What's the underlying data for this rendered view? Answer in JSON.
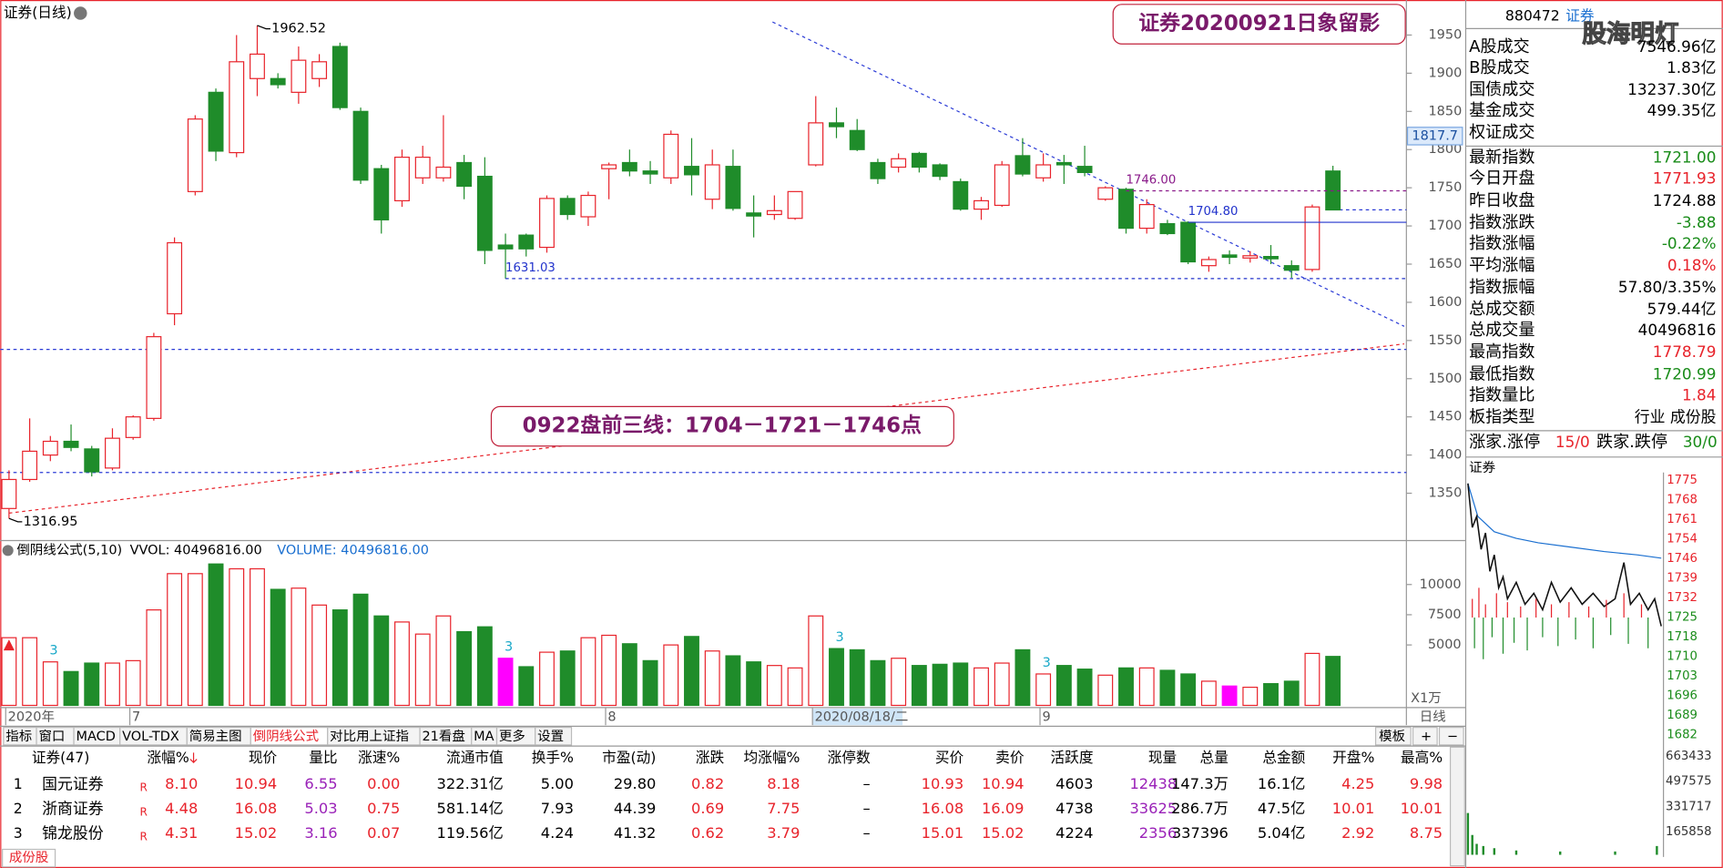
{
  "chart_data": [
    {
      "type": "candlestick",
      "title": "证券(日线)",
      "open": [
        1330,
        1368,
        1400,
        1418,
        1408,
        1383,
        1423,
        1448,
        1585,
        1745,
        1875,
        1796,
        1893,
        1893,
        1875,
        1893,
        1935,
        1850,
        1775,
        1733,
        1763,
        1763,
        1783,
        1765,
        1675,
        1688,
        1672,
        1736,
        1712,
        1775,
        1783,
        1772,
        1763,
        1778,
        1735,
        1778,
        1717,
        1715,
        1710,
        1780,
        1835,
        1825,
        1783,
        1777,
        1795,
        1780,
        1758,
        1722,
        1727,
        1792,
        1763,
        1783,
        1778,
        1735,
        1748,
        1697,
        1703,
        1704.8,
        1648,
        1662,
        1658,
        1660,
        1648,
        1643,
        1771.93
      ],
      "high": [
        1380,
        1448,
        1425,
        1440,
        1412,
        1435,
        1452,
        1560,
        1685,
        1845,
        1880,
        1950,
        1962.52,
        1900,
        1935,
        1925,
        1940,
        1855,
        1780,
        1800,
        1805,
        1845,
        1793,
        1790,
        1690,
        1690,
        1740,
        1740,
        1745,
        1783,
        1800,
        1785,
        1825,
        1815,
        1800,
        1800,
        1740,
        1740,
        1745,
        1870,
        1855,
        1840,
        1788,
        1795,
        1797,
        1782,
        1762,
        1738,
        1785,
        1815,
        1795,
        1793,
        1805,
        1752,
        1750,
        1735,
        1708,
        1706,
        1660,
        1668,
        1667,
        1675,
        1655,
        1728,
        1778.79
      ],
      "low": [
        1316.95,
        1365,
        1392,
        1405,
        1372,
        1380,
        1420,
        1445,
        1570,
        1740,
        1785,
        1790,
        1870,
        1880,
        1860,
        1882,
        1852,
        1755,
        1690,
        1725,
        1755,
        1758,
        1735,
        1650,
        1631.03,
        1660,
        1665,
        1708,
        1700,
        1735,
        1765,
        1755,
        1755,
        1740,
        1722,
        1720,
        1685,
        1708,
        1708,
        1778,
        1815,
        1798,
        1755,
        1770,
        1770,
        1760,
        1720,
        1708,
        1725,
        1765,
        1758,
        1755,
        1765,
        1733,
        1690,
        1690,
        1688,
        1650,
        1640,
        1650,
        1652,
        1650,
        1632,
        1640,
        1720.99
      ],
      "close": [
        1368,
        1405,
        1418,
        1410,
        1378,
        1422,
        1450,
        1555,
        1678,
        1840,
        1798,
        1915,
        1925,
        1885,
        1917,
        1915,
        1855,
        1760,
        1708,
        1790,
        1790,
        1777,
        1752,
        1668,
        1670,
        1670,
        1736,
        1715,
        1740,
        1780,
        1772,
        1768,
        1820,
        1767,
        1780,
        1723,
        1713,
        1720,
        1745,
        1835,
        1830,
        1800,
        1762,
        1788,
        1777,
        1765,
        1722,
        1733,
        1780,
        1768,
        1780,
        1780,
        1770,
        1750,
        1697,
        1728,
        1690,
        1653,
        1656,
        1659,
        1661,
        1657,
        1642,
        1724.88,
        1721
      ],
      "up_color": "#e8232b",
      "down_color": "#1f8c2a",
      "ylim": [
        1288,
        1993
      ],
      "yticks": [
        1350,
        1400,
        1450,
        1500,
        1550,
        1600,
        1650,
        1700,
        1750,
        1800,
        1850,
        1900,
        1950
      ],
      "price_labels": [
        {
          "value": 1962.52,
          "index": 12
        },
        {
          "value": 1316.95,
          "index": 0
        },
        {
          "value": 1631.03,
          "index": 24,
          "line": "dash",
          "color": "#2233cc"
        },
        {
          "value": 1704.8,
          "label": "1704.80",
          "index": 57,
          "line": "solid",
          "color": "#2233cc"
        },
        {
          "value": 1746,
          "label": "1746.00",
          "index": 54,
          "line": "dash",
          "color": "#8a1a8a"
        }
      ],
      "cursor": 1817.7,
      "x_labels": [
        {
          "label": "2020年",
          "index": 0
        },
        {
          "label": "7",
          "index": 6
        },
        {
          "label": "8",
          "index": 29
        },
        {
          "label": "2020/08/18/二",
          "index": 39
        },
        {
          "label": "9",
          "index": 50
        }
      ],
      "period": "日线",
      "notes": [
        "证券20200921日象留影",
        "0922盘前三线：1704－1721－1746点"
      ]
    },
    {
      "type": "bar",
      "title": "倒阴线公式(5,10)",
      "series_labels": [
        "VVOL: 40496816.00",
        "VOLUME: 40496816.00"
      ],
      "values": [
        5600,
        5600,
        3600,
        2800,
        3500,
        3500,
        3700,
        7900,
        10900,
        10900,
        11700,
        11300,
        11300,
        9600,
        9700,
        8300,
        7900,
        9200,
        7400,
        6900,
        5900,
        7400,
        6100,
        6500,
        3900,
        3200,
        4400,
        4500,
        5600,
        5800,
        5100,
        3700,
        5000,
        5700,
        4500,
        4100,
        3600,
        3300,
        3100,
        7400,
        4700,
        4600,
        3700,
        3900,
        3300,
        3400,
        3500,
        3100,
        3500,
        4600,
        2600,
        3300,
        3000,
        2500,
        3100,
        3100,
        2900,
        2600,
        2000,
        1600,
        1500,
        1800,
        2000,
        4300,
        4050
      ],
      "highlight": [
        24,
        59
      ],
      "highlight_color": "#ff00ff",
      "ylim": [
        0,
        13545
      ],
      "yticks": [
        5000,
        7500,
        10000
      ],
      "unit": "X1万",
      "marks": [
        {
          "text": "3",
          "index": 2
        },
        {
          "text": "3",
          "index": 24
        },
        {
          "text": "3",
          "index": 40
        },
        {
          "text": "3",
          "index": 50
        }
      ]
    }
  ],
  "tabs": [
    "指标",
    "窗口",
    "MACD",
    "VOL-TDX",
    "简易主图",
    "倒阴线公式",
    "对比用上证指",
    "21看盘",
    "MA",
    "更多",
    "设置"
  ],
  "active_tab": 5,
  "right_tabs": [
    "模板",
    "+",
    "−"
  ],
  "quote": {
    "code": "880472",
    "name": "证券",
    "watermark": "股海明灯",
    "rows": [
      {
        "label": "A股成交",
        "value": "7546.96亿",
        "color": "#000"
      },
      {
        "label": "B股成交",
        "value": "1.83亿",
        "color": "#000"
      },
      {
        "label": "国债成交",
        "value": "13237.30亿",
        "color": "#000"
      },
      {
        "label": "基金成交",
        "value": "499.35亿",
        "color": "#000"
      },
      {
        "label": "权证成交"
      },
      {
        "label": "最新指数",
        "value": "1721.00",
        "color": "#1a8c1a"
      },
      {
        "label": "今日开盘",
        "value": "1771.93",
        "color": "#e8232b"
      },
      {
        "label": "昨日收盘",
        "value": "1724.88",
        "color": "#000"
      },
      {
        "label": "指数涨跌",
        "value": "-3.88",
        "color": "#1a8c1a"
      },
      {
        "label": "指数涨幅",
        "value": "-0.22%",
        "color": "#1a8c1a"
      },
      {
        "label": "平均涨幅",
        "value": "0.18%",
        "color": "#e8232b"
      },
      {
        "label": "指数振幅",
        "value": "57.80/3.35%",
        "color": "#000"
      },
      {
        "label": "总成交额",
        "value": "579.44亿",
        "color": "#000"
      },
      {
        "label": "总成交量",
        "value": "40496816",
        "color": "#000"
      },
      {
        "label": "最高指数",
        "value": "1778.79",
        "color": "#e8232b"
      },
      {
        "label": "最低指数",
        "value": "1720.99",
        "color": "#1a8c1a"
      },
      {
        "label": "指数量比",
        "value": "1.84",
        "color": "#e8232b"
      },
      {
        "label": "板指类型",
        "value": "行业 成份股",
        "color": "#000"
      }
    ],
    "breadth": {
      "up_label": "涨家.涨停",
      "up": "15/0",
      "down_label": "跌家.跌停",
      "down": "30/0"
    },
    "mini_title": "证券",
    "mini_ticks": [
      "1775",
      "1768",
      "1761",
      "1754",
      "1746",
      "1739",
      "1732",
      "1725",
      "1718",
      "1710",
      "1703",
      "1696",
      "1689",
      "1682"
    ],
    "mini_vol_ticks": [
      "663433",
      "497575",
      "331717",
      "165858"
    ]
  },
  "table": {
    "headers": [
      "证券(47)",
      "涨幅%",
      "现价",
      "量比",
      "涨速%",
      "流通市值",
      "换手%",
      "市盈(动)",
      "涨跌",
      "均涨幅%",
      "涨停数",
      "买价",
      "卖价",
      "活跃度",
      "现量",
      "总量",
      "总金额",
      "开盘%",
      "最高%"
    ],
    "rows": [
      [
        "1",
        "国元证券",
        "R",
        "8.10",
        "10.94",
        "6.55",
        "0.00",
        "322.31亿",
        "5.00",
        "29.80",
        "0.82",
        "8.18",
        "–",
        "10.93",
        "10.94",
        "4603",
        "12438",
        "147.3万",
        "16.1亿",
        "4.25",
        "9.98"
      ],
      [
        "2",
        "浙商证券",
        "R",
        "4.48",
        "16.08",
        "5.03",
        "0.75",
        "581.14亿",
        "7.93",
        "44.39",
        "0.69",
        "7.75",
        "–",
        "16.08",
        "16.09",
        "4738",
        "33625",
        "286.7万",
        "47.5亿",
        "10.01",
        "10.01"
      ],
      [
        "3",
        "锦龙股份",
        "R",
        "4.31",
        "15.02",
        "3.16",
        "0.07",
        "119.56亿",
        "4.24",
        "41.32",
        "0.62",
        "3.79",
        "–",
        "15.01",
        "15.02",
        "4224",
        "2356",
        "337396",
        "5.04亿",
        "2.92",
        "8.75"
      ]
    ],
    "bottom_tab": "成份股"
  }
}
